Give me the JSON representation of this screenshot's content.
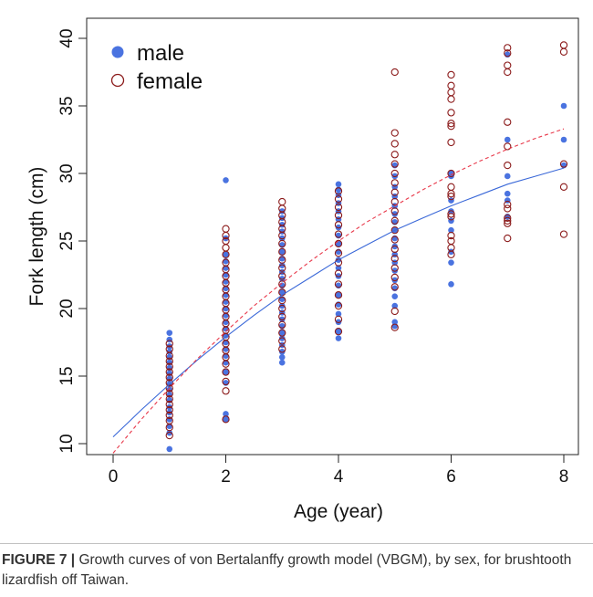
{
  "figure": {
    "caption_label": "FIGURE 7 |",
    "caption_text": "Growth curves of von Bertalanffy growth model (VBGM), by sex, for brushtooth lizardfish off Taiwan."
  },
  "colors": {
    "male": "#4a73e0",
    "female": "#8b1a1a",
    "male_curve": "#3a68d8",
    "female_curve": "#e8384a"
  },
  "chart_data": {
    "type": "scatter",
    "xlabel": "Age (year)",
    "ylabel": "Fork length (cm)",
    "xlim": [
      0,
      8
    ],
    "ylim": [
      9,
      41
    ],
    "xticks": [
      0,
      2,
      4,
      6,
      8
    ],
    "yticks": [
      10,
      15,
      20,
      25,
      30,
      35,
      40
    ],
    "grid": false,
    "legend_position": "top-left",
    "series": [
      {
        "name": "male",
        "marker": "filled-circle",
        "color": "#4a73e0",
        "points": [
          [
            1,
            9.6
          ],
          [
            1,
            10.8
          ],
          [
            1,
            11.3
          ],
          [
            1,
            11.8
          ],
          [
            1,
            12.3
          ],
          [
            1,
            12.7
          ],
          [
            1,
            13.2
          ],
          [
            1,
            13.6
          ],
          [
            1,
            14.0
          ],
          [
            1,
            14.4
          ],
          [
            1,
            14.8
          ],
          [
            1,
            15.2
          ],
          [
            1,
            15.6
          ],
          [
            1,
            16.0
          ],
          [
            1,
            16.4
          ],
          [
            1,
            16.8
          ],
          [
            1,
            17.2
          ],
          [
            1,
            17.7
          ],
          [
            1,
            18.2
          ],
          [
            2,
            11.8
          ],
          [
            2,
            12.2
          ],
          [
            2,
            14.5
          ],
          [
            2,
            15.3
          ],
          [
            2,
            16.0
          ],
          [
            2,
            16.5
          ],
          [
            2,
            17.0
          ],
          [
            2,
            17.5
          ],
          [
            2,
            18.0
          ],
          [
            2,
            18.5
          ],
          [
            2,
            19.0
          ],
          [
            2,
            19.5
          ],
          [
            2,
            20.0
          ],
          [
            2,
            20.5
          ],
          [
            2,
            21.0
          ],
          [
            2,
            21.5
          ],
          [
            2,
            22.0
          ],
          [
            2,
            22.5
          ],
          [
            2,
            23.0
          ],
          [
            2,
            23.5
          ],
          [
            2,
            24.0
          ],
          [
            2,
            25.2
          ],
          [
            2,
            29.5
          ],
          [
            3,
            16.0
          ],
          [
            3,
            16.4
          ],
          [
            3,
            16.8
          ],
          [
            3,
            17.3
          ],
          [
            3,
            17.8
          ],
          [
            3,
            18.2
          ],
          [
            3,
            18.7
          ],
          [
            3,
            19.2
          ],
          [
            3,
            19.7
          ],
          [
            3,
            20.2
          ],
          [
            3,
            20.7
          ],
          [
            3,
            21.2
          ],
          [
            3,
            21.7
          ],
          [
            3,
            22.2
          ],
          [
            3,
            22.7
          ],
          [
            3,
            23.2
          ],
          [
            3,
            23.7
          ],
          [
            3,
            24.2
          ],
          [
            3,
            24.7
          ],
          [
            3,
            25.2
          ],
          [
            3,
            25.7
          ],
          [
            3,
            26.2
          ],
          [
            3,
            26.7
          ],
          [
            3,
            27.2
          ],
          [
            4,
            17.8
          ],
          [
            4,
            18.3
          ],
          [
            4,
            19.0
          ],
          [
            4,
            19.6
          ],
          [
            4,
            20.3
          ],
          [
            4,
            21.0
          ],
          [
            4,
            21.7
          ],
          [
            4,
            22.4
          ],
          [
            4,
            23.0
          ],
          [
            4,
            23.6
          ],
          [
            4,
            24.2
          ],
          [
            4,
            24.8
          ],
          [
            4,
            25.4
          ],
          [
            4,
            26.0
          ],
          [
            4,
            26.6
          ],
          [
            4,
            27.2
          ],
          [
            4,
            27.8
          ],
          [
            4,
            28.4
          ],
          [
            4,
            28.8
          ],
          [
            4,
            29.2
          ],
          [
            5,
            18.7
          ],
          [
            5,
            19.0
          ],
          [
            5,
            20.2
          ],
          [
            5,
            20.9
          ],
          [
            5,
            21.5
          ],
          [
            5,
            22.1
          ],
          [
            5,
            22.8
          ],
          [
            5,
            23.4
          ],
          [
            5,
            24.0
          ],
          [
            5,
            24.6
          ],
          [
            5,
            25.2
          ],
          [
            5,
            25.8
          ],
          [
            5,
            26.4
          ],
          [
            5,
            27.0
          ],
          [
            5,
            27.6
          ],
          [
            5,
            28.3
          ],
          [
            5,
            29.0
          ],
          [
            5,
            29.8
          ],
          [
            5,
            30.6
          ],
          [
            6,
            21.8
          ],
          [
            6,
            23.4
          ],
          [
            6,
            24.2
          ],
          [
            6,
            25.8
          ],
          [
            6,
            26.5
          ],
          [
            6,
            27.2
          ],
          [
            6,
            28.0
          ],
          [
            6,
            29.8
          ],
          [
            6,
            30.0
          ],
          [
            7,
            26.8
          ],
          [
            7,
            28.0
          ],
          [
            7,
            28.5
          ],
          [
            7,
            29.8
          ],
          [
            7,
            32.5
          ],
          [
            7,
            38.8
          ],
          [
            8,
            30.6
          ],
          [
            8,
            32.5
          ],
          [
            8,
            35.0
          ]
        ]
      },
      {
        "name": "female",
        "marker": "open-circle",
        "color": "#8b1a1a",
        "points": [
          [
            1,
            10.6
          ],
          [
            1,
            11.2
          ],
          [
            1,
            11.7
          ],
          [
            1,
            12.1
          ],
          [
            1,
            12.5
          ],
          [
            1,
            12.9
          ],
          [
            1,
            13.3
          ],
          [
            1,
            13.7
          ],
          [
            1,
            14.1
          ],
          [
            1,
            14.5
          ],
          [
            1,
            14.9
          ],
          [
            1,
            15.3
          ],
          [
            1,
            15.7
          ],
          [
            1,
            16.1
          ],
          [
            1,
            16.5
          ],
          [
            1,
            17.0
          ],
          [
            1,
            17.4
          ],
          [
            2,
            11.8
          ],
          [
            2,
            13.9
          ],
          [
            2,
            14.6
          ],
          [
            2,
            15.3
          ],
          [
            2,
            15.9
          ],
          [
            2,
            16.4
          ],
          [
            2,
            16.9
          ],
          [
            2,
            17.4
          ],
          [
            2,
            17.9
          ],
          [
            2,
            18.4
          ],
          [
            2,
            18.9
          ],
          [
            2,
            19.4
          ],
          [
            2,
            19.9
          ],
          [
            2,
            20.4
          ],
          [
            2,
            20.9
          ],
          [
            2,
            21.4
          ],
          [
            2,
            21.9
          ],
          [
            2,
            22.4
          ],
          [
            2,
            22.9
          ],
          [
            2,
            23.4
          ],
          [
            2,
            24.0
          ],
          [
            2,
            24.5
          ],
          [
            2,
            25.0
          ],
          [
            2,
            25.4
          ],
          [
            2,
            25.9
          ],
          [
            3,
            17.0
          ],
          [
            3,
            17.6
          ],
          [
            3,
            18.2
          ],
          [
            3,
            18.8
          ],
          [
            3,
            19.4
          ],
          [
            3,
            20.0
          ],
          [
            3,
            20.6
          ],
          [
            3,
            21.2
          ],
          [
            3,
            21.8
          ],
          [
            3,
            22.4
          ],
          [
            3,
            23.0
          ],
          [
            3,
            23.6
          ],
          [
            3,
            24.2
          ],
          [
            3,
            24.8
          ],
          [
            3,
            25.4
          ],
          [
            3,
            25.9
          ],
          [
            3,
            26.4
          ],
          [
            3,
            26.9
          ],
          [
            3,
            27.4
          ],
          [
            3,
            27.9
          ],
          [
            4,
            18.3
          ],
          [
            4,
            19.2
          ],
          [
            4,
            20.2
          ],
          [
            4,
            21.0
          ],
          [
            4,
            21.8
          ],
          [
            4,
            22.6
          ],
          [
            4,
            23.4
          ],
          [
            4,
            24.1
          ],
          [
            4,
            24.8
          ],
          [
            4,
            25.5
          ],
          [
            4,
            26.2
          ],
          [
            4,
            26.9
          ],
          [
            4,
            27.5
          ],
          [
            4,
            28.1
          ],
          [
            4,
            28.7
          ],
          [
            5,
            18.6
          ],
          [
            5,
            19.8
          ],
          [
            5,
            21.6
          ],
          [
            5,
            22.3
          ],
          [
            5,
            23.0
          ],
          [
            5,
            23.7
          ],
          [
            5,
            24.4
          ],
          [
            5,
            25.1
          ],
          [
            5,
            25.8
          ],
          [
            5,
            26.5
          ],
          [
            5,
            27.2
          ],
          [
            5,
            27.9
          ],
          [
            5,
            28.6
          ],
          [
            5,
            29.3
          ],
          [
            5,
            30.0
          ],
          [
            5,
            30.7
          ],
          [
            5,
            31.4
          ],
          [
            5,
            32.2
          ],
          [
            5,
            33.0
          ],
          [
            5,
            37.5
          ],
          [
            6,
            24.0
          ],
          [
            6,
            24.5
          ],
          [
            6,
            25.0
          ],
          [
            6,
            25.4
          ],
          [
            6,
            26.8
          ],
          [
            6,
            27.0
          ],
          [
            6,
            28.3
          ],
          [
            6,
            28.5
          ],
          [
            6,
            29.0
          ],
          [
            6,
            30.0
          ],
          [
            6,
            32.3
          ],
          [
            6,
            33.5
          ],
          [
            6,
            33.7
          ],
          [
            6,
            34.5
          ],
          [
            6,
            35.5
          ],
          [
            6,
            36.0
          ],
          [
            6,
            36.5
          ],
          [
            6,
            37.3
          ],
          [
            7,
            25.2
          ],
          [
            7,
            26.3
          ],
          [
            7,
            26.5
          ],
          [
            7,
            26.7
          ],
          [
            7,
            27.4
          ],
          [
            7,
            27.7
          ],
          [
            7,
            30.6
          ],
          [
            7,
            32.0
          ],
          [
            7,
            33.8
          ],
          [
            7,
            37.5
          ],
          [
            7,
            38.0
          ],
          [
            7,
            38.9
          ],
          [
            7,
            39.3
          ],
          [
            8,
            25.5
          ],
          [
            8,
            29.0
          ],
          [
            8,
            30.7
          ],
          [
            8,
            39.0
          ],
          [
            8,
            39.5
          ]
        ]
      },
      {
        "name": "male",
        "type": "line",
        "style": "solid",
        "color": "#3a68d8",
        "x": [
          0,
          0.5,
          1,
          1.5,
          2,
          2.5,
          3,
          3.5,
          4,
          4.5,
          5,
          5.5,
          6,
          6.5,
          7,
          7.5,
          8
        ],
        "y": [
          10.5,
          12.5,
          14.4,
          16.2,
          17.9,
          19.5,
          21.0,
          22.3,
          23.6,
          24.7,
          25.8,
          26.7,
          27.6,
          28.4,
          29.2,
          29.8,
          30.4
        ]
      },
      {
        "name": "female",
        "type": "line",
        "style": "dashed",
        "color": "#e8384a",
        "x": [
          0,
          0.5,
          1,
          1.5,
          2,
          2.5,
          3,
          3.5,
          4,
          4.5,
          5,
          5.5,
          6,
          6.5,
          7,
          7.5,
          8
        ],
        "y": [
          9.3,
          11.8,
          14.1,
          16.3,
          18.3,
          20.2,
          21.9,
          23.5,
          25.0,
          26.4,
          27.6,
          28.8,
          29.9,
          30.9,
          31.8,
          32.6,
          33.3
        ]
      }
    ]
  }
}
